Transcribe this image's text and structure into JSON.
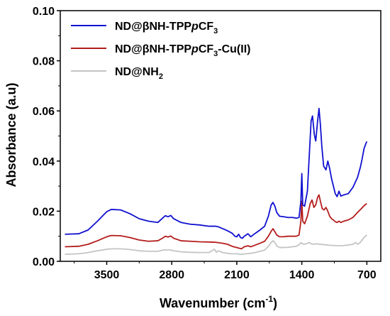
{
  "chart_data": {
    "type": "line",
    "xlabel_main": "Wavenumber (cm",
    "xlabel_sup": "-1",
    "xlabel_tail": ")",
    "ylabel": "Absorbance (a.u)",
    "xlim": [
      4000,
      550
    ],
    "ylim": [
      0,
      0.1
    ],
    "x_reversed": true,
    "x_ticks": [
      3500,
      2800,
      2100,
      1400,
      700
    ],
    "y_ticks": [
      0.0,
      0.02,
      0.04,
      0.06,
      0.08,
      0.1
    ],
    "y_tick_labels": [
      "0.00",
      "0.02",
      "0.04",
      "0.06",
      "0.08",
      "0.10"
    ],
    "legend_position": "top-left",
    "grid": false,
    "series": [
      {
        "name_parts": [
          "ND@βNH-TPP",
          "p",
          "CF",
          "3",
          ""
        ],
        "color": "#1010d0",
        "points": [
          [
            3950,
            0.0108
          ],
          [
            3800,
            0.011
          ],
          [
            3700,
            0.0125
          ],
          [
            3600,
            0.016
          ],
          [
            3500,
            0.0198
          ],
          [
            3450,
            0.0207
          ],
          [
            3350,
            0.0205
          ],
          [
            3250,
            0.019
          ],
          [
            3150,
            0.017
          ],
          [
            3050,
            0.016
          ],
          [
            2950,
            0.0155
          ],
          [
            2900,
            0.0172
          ],
          [
            2870,
            0.0182
          ],
          [
            2840,
            0.0178
          ],
          [
            2810,
            0.0183
          ],
          [
            2780,
            0.017
          ],
          [
            2700,
            0.0155
          ],
          [
            2600,
            0.0148
          ],
          [
            2500,
            0.0145
          ],
          [
            2400,
            0.014
          ],
          [
            2330,
            0.014
          ],
          [
            2300,
            0.0138
          ],
          [
            2250,
            0.013
          ],
          [
            2200,
            0.0122
          ],
          [
            2150,
            0.0112
          ],
          [
            2120,
            0.01
          ],
          [
            2100,
            0.0098
          ],
          [
            2080,
            0.0108
          ],
          [
            2060,
            0.0095
          ],
          [
            2040,
            0.0092
          ],
          [
            2020,
            0.01
          ],
          [
            1980,
            0.011
          ],
          [
            1950,
            0.0098
          ],
          [
            1900,
            0.0112
          ],
          [
            1850,
            0.0125
          ],
          [
            1800,
            0.014
          ],
          [
            1760,
            0.018
          ],
          [
            1730,
            0.0225
          ],
          [
            1710,
            0.0235
          ],
          [
            1690,
            0.022
          ],
          [
            1670,
            0.0195
          ],
          [
            1640,
            0.018
          ],
          [
            1600,
            0.0178
          ],
          [
            1550,
            0.0175
          ],
          [
            1500,
            0.0175
          ],
          [
            1460,
            0.0172
          ],
          [
            1430,
            0.0175
          ],
          [
            1410,
            0.024
          ],
          [
            1400,
            0.035
          ],
          [
            1390,
            0.0225
          ],
          [
            1370,
            0.022
          ],
          [
            1340,
            0.028
          ],
          [
            1320,
            0.042
          ],
          [
            1300,
            0.056
          ],
          [
            1285,
            0.058
          ],
          [
            1265,
            0.0505
          ],
          [
            1250,
            0.048
          ],
          [
            1230,
            0.056
          ],
          [
            1215,
            0.061
          ],
          [
            1200,
            0.0545
          ],
          [
            1185,
            0.046
          ],
          [
            1165,
            0.038
          ],
          [
            1140,
            0.0365
          ],
          [
            1120,
            0.04
          ],
          [
            1100,
            0.037
          ],
          [
            1080,
            0.033
          ],
          [
            1060,
            0.03
          ],
          [
            1040,
            0.027
          ],
          [
            1020,
            0.0258
          ],
          [
            1000,
            0.028
          ],
          [
            980,
            0.026
          ],
          [
            950,
            0.0265
          ],
          [
            900,
            0.027
          ],
          [
            850,
            0.0295
          ],
          [
            800,
            0.0335
          ],
          [
            770,
            0.0375
          ],
          [
            750,
            0.041
          ],
          [
            730,
            0.045
          ],
          [
            710,
            0.047
          ],
          [
            700,
            0.0478
          ]
        ]
      },
      {
        "name_parts": [
          "ND@βNH-TPP",
          "p",
          "CF",
          "3",
          "-Cu(II)"
        ],
        "color": "#b51c1c",
        "points": [
          [
            3950,
            0.0058
          ],
          [
            3800,
            0.006
          ],
          [
            3700,
            0.0068
          ],
          [
            3600,
            0.0082
          ],
          [
            3500,
            0.0098
          ],
          [
            3450,
            0.0103
          ],
          [
            3350,
            0.0102
          ],
          [
            3250,
            0.0095
          ],
          [
            3150,
            0.0085
          ],
          [
            3050,
            0.008
          ],
          [
            2950,
            0.0082
          ],
          [
            2900,
            0.0092
          ],
          [
            2870,
            0.01
          ],
          [
            2840,
            0.0097
          ],
          [
            2810,
            0.0101
          ],
          [
            2780,
            0.0092
          ],
          [
            2700,
            0.0082
          ],
          [
            2600,
            0.008
          ],
          [
            2500,
            0.0078
          ],
          [
            2400,
            0.0077
          ],
          [
            2330,
            0.0076
          ],
          [
            2250,
            0.0072
          ],
          [
            2200,
            0.0068
          ],
          [
            2150,
            0.006
          ],
          [
            2100,
            0.0055
          ],
          [
            2050,
            0.005
          ],
          [
            2020,
            0.0058
          ],
          [
            1980,
            0.0062
          ],
          [
            1950,
            0.0058
          ],
          [
            1900,
            0.0065
          ],
          [
            1850,
            0.0072
          ],
          [
            1800,
            0.008
          ],
          [
            1760,
            0.01
          ],
          [
            1730,
            0.012
          ],
          [
            1710,
            0.013
          ],
          [
            1690,
            0.0118
          ],
          [
            1670,
            0.0105
          ],
          [
            1640,
            0.0098
          ],
          [
            1600,
            0.0098
          ],
          [
            1550,
            0.01
          ],
          [
            1500,
            0.01
          ],
          [
            1460,
            0.01
          ],
          [
            1430,
            0.0105
          ],
          [
            1410,
            0.016
          ],
          [
            1400,
            0.024
          ],
          [
            1390,
            0.016
          ],
          [
            1370,
            0.015
          ],
          [
            1340,
            0.018
          ],
          [
            1310,
            0.023
          ],
          [
            1290,
            0.0245
          ],
          [
            1270,
            0.0215
          ],
          [
            1250,
            0.0225
          ],
          [
            1230,
            0.0255
          ],
          [
            1215,
            0.0265
          ],
          [
            1200,
            0.024
          ],
          [
            1180,
            0.021
          ],
          [
            1160,
            0.0205
          ],
          [
            1140,
            0.0215
          ],
          [
            1120,
            0.02
          ],
          [
            1100,
            0.018
          ],
          [
            1080,
            0.017
          ],
          [
            1060,
            0.0165
          ],
          [
            1040,
            0.0158
          ],
          [
            1020,
            0.0155
          ],
          [
            1000,
            0.016
          ],
          [
            980,
            0.0155
          ],
          [
            950,
            0.016
          ],
          [
            900,
            0.0165
          ],
          [
            850,
            0.0175
          ],
          [
            800,
            0.0195
          ],
          [
            760,
            0.021
          ],
          [
            730,
            0.0222
          ],
          [
            710,
            0.0228
          ],
          [
            700,
            0.023
          ]
        ]
      },
      {
        "name_parts": [
          "ND@NH",
          "",
          "",
          "2",
          ""
        ],
        "color": "#c4c4c4",
        "points": [
          [
            3950,
            0.0028
          ],
          [
            3800,
            0.003
          ],
          [
            3700,
            0.0035
          ],
          [
            3600,
            0.0042
          ],
          [
            3500,
            0.0048
          ],
          [
            3450,
            0.005
          ],
          [
            3350,
            0.005
          ],
          [
            3250,
            0.0047
          ],
          [
            3150,
            0.0042
          ],
          [
            3050,
            0.004
          ],
          [
            2950,
            0.004
          ],
          [
            2880,
            0.0046
          ],
          [
            2850,
            0.0045
          ],
          [
            2820,
            0.0046
          ],
          [
            2780,
            0.0042
          ],
          [
            2700,
            0.0038
          ],
          [
            2600,
            0.0036
          ],
          [
            2500,
            0.0035
          ],
          [
            2400,
            0.0035
          ],
          [
            2340,
            0.0048
          ],
          [
            2320,
            0.0036
          ],
          [
            2300,
            0.0042
          ],
          [
            2250,
            0.0035
          ],
          [
            2200,
            0.0032
          ],
          [
            2150,
            0.003
          ],
          [
            2100,
            0.003
          ],
          [
            2050,
            0.0028
          ],
          [
            2000,
            0.003
          ],
          [
            1950,
            0.0032
          ],
          [
            1900,
            0.0035
          ],
          [
            1850,
            0.004
          ],
          [
            1800,
            0.0045
          ],
          [
            1760,
            0.006
          ],
          [
            1730,
            0.0075
          ],
          [
            1710,
            0.0082
          ],
          [
            1690,
            0.0075
          ],
          [
            1670,
            0.0062
          ],
          [
            1640,
            0.0055
          ],
          [
            1600,
            0.0055
          ],
          [
            1550,
            0.0056
          ],
          [
            1500,
            0.0058
          ],
          [
            1460,
            0.006
          ],
          [
            1430,
            0.0066
          ],
          [
            1410,
            0.0075
          ],
          [
            1400,
            0.0072
          ],
          [
            1380,
            0.0068
          ],
          [
            1350,
            0.007
          ],
          [
            1320,
            0.0075
          ],
          [
            1300,
            0.007
          ],
          [
            1270,
            0.0068
          ],
          [
            1250,
            0.007
          ],
          [
            1200,
            0.0068
          ],
          [
            1150,
            0.0066
          ],
          [
            1100,
            0.0064
          ],
          [
            1050,
            0.0063
          ],
          [
            1000,
            0.0062
          ],
          [
            950,
            0.0063
          ],
          [
            900,
            0.0065
          ],
          [
            850,
            0.0068
          ],
          [
            820,
            0.0075
          ],
          [
            800,
            0.0068
          ],
          [
            780,
            0.0072
          ],
          [
            750,
            0.0085
          ],
          [
            730,
            0.0095
          ],
          [
            710,
            0.0102
          ],
          [
            700,
            0.0105
          ]
        ]
      }
    ]
  }
}
